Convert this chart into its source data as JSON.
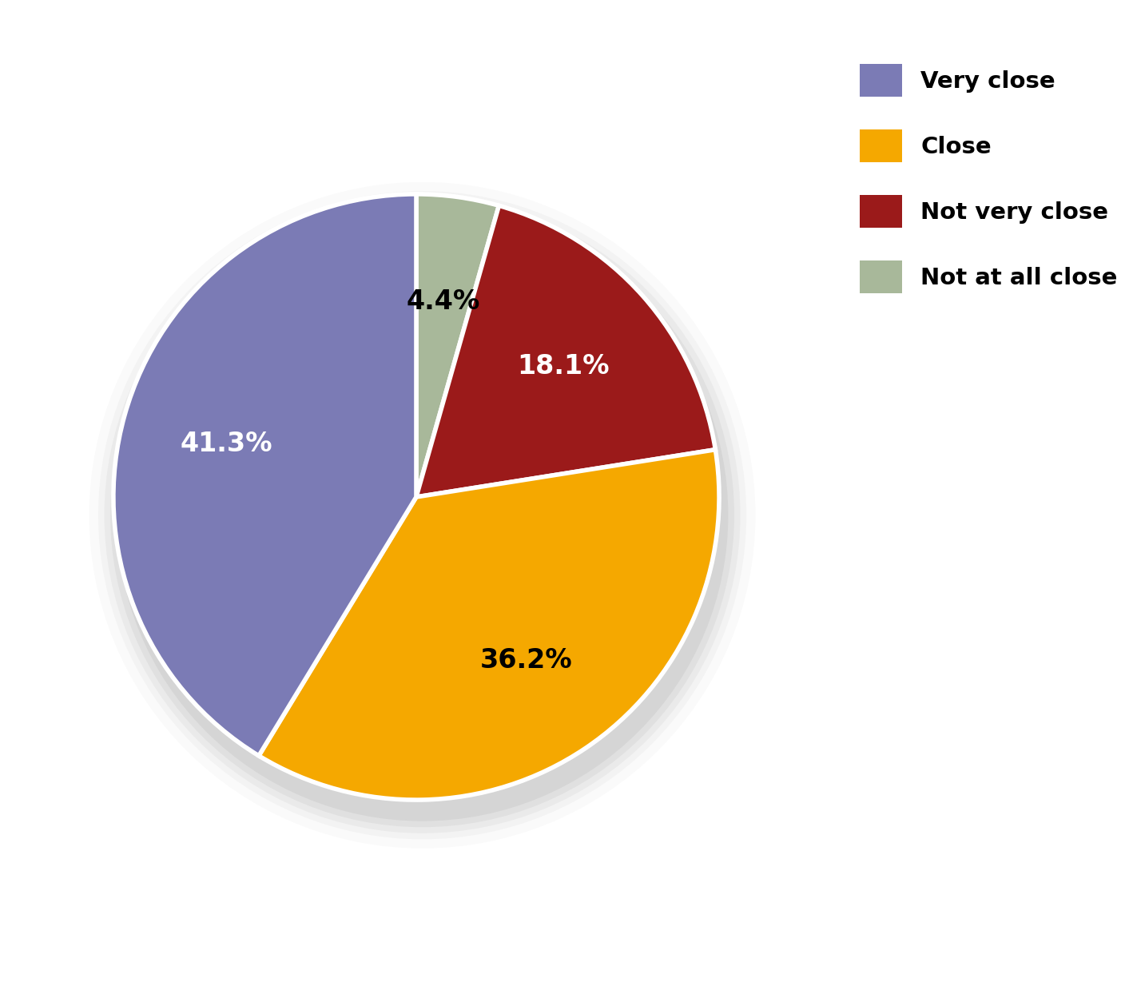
{
  "labels": [
    "Very close",
    "Close",
    "Not very close",
    "Not at all close"
  ],
  "values": [
    41.3,
    36.2,
    18.1,
    4.4
  ],
  "colors": [
    "#7b7bb5",
    "#f5a800",
    "#9b1a1a",
    "#a8b89a"
  ],
  "label_colors": [
    "white",
    "black",
    "white",
    "black"
  ],
  "legend_labels": [
    "Very close",
    "Close",
    "Not very close",
    "Not at all close"
  ],
  "background_color": "#ffffff",
  "pie_edge_color": "white",
  "pie_linewidth": 4,
  "label_fontsize": 24,
  "legend_fontsize": 21,
  "wedge_order_values": [
    4.4,
    18.1,
    36.2,
    41.3
  ],
  "wedge_order_colors": [
    "#a8b89a",
    "#9b1a1a",
    "#f5a800",
    "#7b7bb5"
  ],
  "wedge_order_label_colors": [
    "black",
    "white",
    "black",
    "white"
  ]
}
